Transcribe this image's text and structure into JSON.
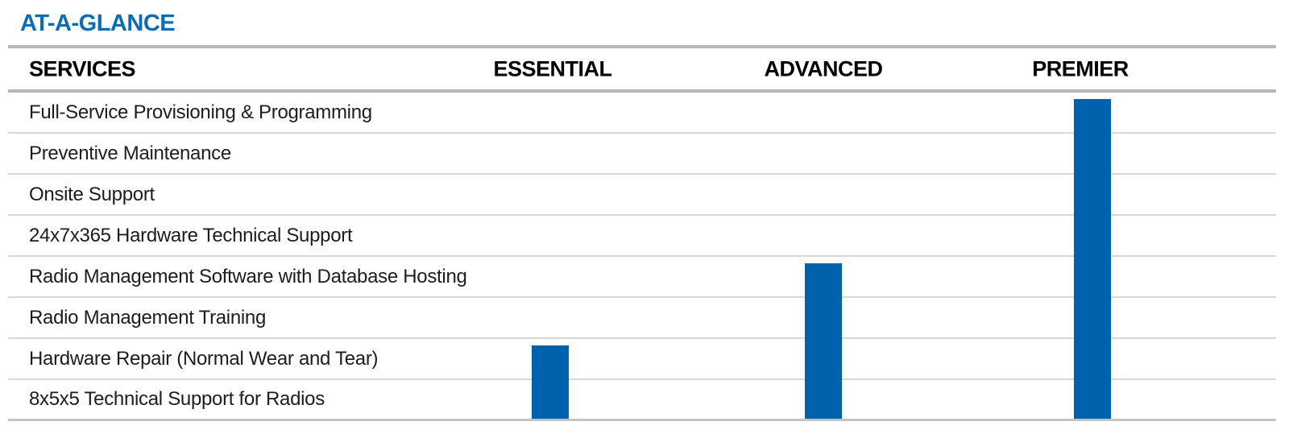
{
  "title": "AT-A-GLANCE",
  "colors": {
    "title_blue": "#0c6cb5",
    "bar_blue": "#0061ad",
    "thick_line": "#b7b7b7",
    "thin_line": "#d8d8d8",
    "text_dark": "#1d1d1d"
  },
  "table": {
    "services_header": "SERVICES",
    "tier_columns": [
      "ESSENTIAL",
      "ADVANCED",
      "PREMIER"
    ]
  },
  "chart_data": {
    "type": "table",
    "title": "AT-A-GLANCE",
    "row_header": "SERVICES",
    "categories": [
      "Full-Service Provisioning & Programming",
      "Preventive Maintenance",
      "Onsite Support",
      "24x7x365 Hardware Technical Support",
      "Radio Management Software with Database Hosting",
      "Radio Management Training",
      "Hardware Repair (Normal Wear and Tear)",
      "8x5x5 Technical Support for Radios"
    ],
    "series": [
      {
        "name": "ESSENTIAL",
        "included": [
          false,
          false,
          false,
          false,
          false,
          false,
          true,
          true
        ]
      },
      {
        "name": "ADVANCED",
        "included": [
          false,
          false,
          false,
          false,
          true,
          true,
          true,
          true
        ]
      },
      {
        "name": "PREMIER",
        "included": [
          true,
          true,
          true,
          true,
          true,
          true,
          true,
          true
        ]
      }
    ],
    "legend_position": "none",
    "annotations": "Solid blue vertical bars under each tier column span from the first included service row down to the bottom rule, indicating which services are covered by that tier"
  }
}
